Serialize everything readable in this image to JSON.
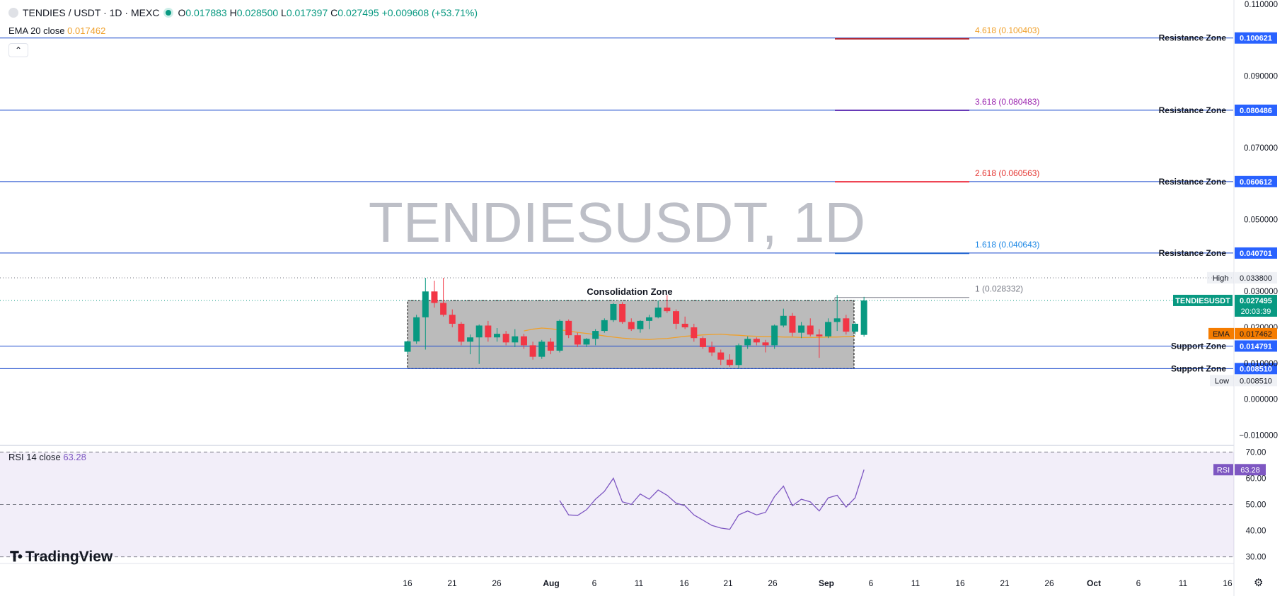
{
  "header": {
    "symbol": "TENDIES / USDT · 1D · MEXC",
    "ohlc": [
      {
        "k": "O",
        "v": "0.017883"
      },
      {
        "k": "H",
        "v": "0.028500"
      },
      {
        "k": "L",
        "v": "0.017397"
      },
      {
        "k": "C",
        "v": "0.027495"
      }
    ],
    "change": "+0.009608 (+53.71%)",
    "ema_label": "EMA 20 close",
    "ema_value": "0.017462"
  },
  "watermark": "TENDIESUSDT, 1D",
  "rsi_panel": {
    "label": "RSI 14 close",
    "value": "63.28"
  },
  "branding": {
    "logo_text": "TradingView"
  },
  "colors": {
    "up": "#089981",
    "down": "#f23645",
    "ema": "#f0a02a",
    "rsi": "#7e57c2",
    "zone_line": "#1848cc",
    "badge_blue": "#2962ff"
  },
  "chart_data": {
    "type": "candlestick",
    "x_ticks": [
      "16",
      "21",
      "26",
      "Aug",
      "6",
      "11",
      "16",
      "21",
      "26",
      "Sep",
      "6",
      "11",
      "16",
      "21",
      "26",
      "Oct",
      "6",
      "11",
      "16"
    ],
    "y_ticks": [
      "0.110000",
      "0.090000",
      "0.070000",
      "0.050000",
      "0.030000",
      "0.020000",
      "0.010000",
      "0.000000",
      "−0.010000"
    ],
    "ylim": [
      -0.0125,
      0.1112
    ],
    "candles": [
      [
        0.0132,
        0.0162,
        0.0125,
        0.0161
      ],
      [
        0.0161,
        0.0235,
        0.0154,
        0.0228
      ],
      [
        0.0228,
        0.0338,
        0.0138,
        0.03
      ],
      [
        0.03,
        0.033,
        0.0255,
        0.0268
      ],
      [
        0.0268,
        0.0338,
        0.023,
        0.0235
      ],
      [
        0.0235,
        0.025,
        0.02,
        0.021
      ],
      [
        0.021,
        0.0215,
        0.015,
        0.016
      ],
      [
        0.016,
        0.018,
        0.0125,
        0.0172
      ],
      [
        0.0172,
        0.0208,
        0.0098,
        0.0205
      ],
      [
        0.0205,
        0.0218,
        0.016,
        0.0172
      ],
      [
        0.0172,
        0.0198,
        0.016,
        0.0182
      ],
      [
        0.0182,
        0.019,
        0.015,
        0.0158
      ],
      [
        0.0158,
        0.0195,
        0.0145,
        0.0175
      ],
      [
        0.0175,
        0.0182,
        0.014,
        0.015
      ],
      [
        0.015,
        0.016,
        0.011,
        0.0118
      ],
      [
        0.0118,
        0.0165,
        0.0112,
        0.016
      ],
      [
        0.016,
        0.017,
        0.0125,
        0.0135
      ],
      [
        0.0135,
        0.0222,
        0.013,
        0.0218
      ],
      [
        0.0218,
        0.0222,
        0.017,
        0.0178
      ],
      [
        0.0178,
        0.0185,
        0.0145,
        0.0152
      ],
      [
        0.0152,
        0.017,
        0.0145,
        0.0168
      ],
      [
        0.0168,
        0.0195,
        0.015,
        0.019
      ],
      [
        0.019,
        0.0225,
        0.0185,
        0.022
      ],
      [
        0.022,
        0.0268,
        0.0215,
        0.0265
      ],
      [
        0.0265,
        0.027,
        0.021,
        0.0215
      ],
      [
        0.0215,
        0.0225,
        0.019,
        0.0195
      ],
      [
        0.0195,
        0.022,
        0.0185,
        0.0218
      ],
      [
        0.0218,
        0.0235,
        0.0195,
        0.0228
      ],
      [
        0.0228,
        0.0275,
        0.0225,
        0.0255
      ],
      [
        0.0255,
        0.029,
        0.024,
        0.0245
      ],
      [
        0.0245,
        0.025,
        0.0195,
        0.021
      ],
      [
        0.021,
        0.023,
        0.0195,
        0.02
      ],
      [
        0.02,
        0.021,
        0.016,
        0.017
      ],
      [
        0.017,
        0.0175,
        0.014,
        0.0145
      ],
      [
        0.0145,
        0.016,
        0.012,
        0.013
      ],
      [
        0.013,
        0.0138,
        0.0095,
        0.011
      ],
      [
        0.011,
        0.0125,
        0.009,
        0.0095
      ],
      [
        0.0095,
        0.0155,
        0.0085,
        0.015
      ],
      [
        0.015,
        0.0175,
        0.014,
        0.0168
      ],
      [
        0.0168,
        0.0172,
        0.015,
        0.0158
      ],
      [
        0.0158,
        0.0165,
        0.013,
        0.015
      ],
      [
        0.015,
        0.0208,
        0.014,
        0.0205
      ],
      [
        0.0205,
        0.0252,
        0.02,
        0.0232
      ],
      [
        0.0232,
        0.024,
        0.0175,
        0.0185
      ],
      [
        0.0185,
        0.0215,
        0.017,
        0.0205
      ],
      [
        0.0205,
        0.0225,
        0.0175,
        0.018
      ],
      [
        0.018,
        0.0195,
        0.0115,
        0.0175
      ],
      [
        0.0175,
        0.0225,
        0.017,
        0.0215
      ],
      [
        0.0215,
        0.029,
        0.019,
        0.0225
      ],
      [
        0.0225,
        0.0235,
        0.018,
        0.0188
      ],
      [
        0.0188,
        0.0215,
        0.018,
        0.021
      ],
      [
        0.0179,
        0.0285,
        0.0174,
        0.0275
      ]
    ],
    "ema": [
      0.019,
      0.0195,
      0.0198,
      0.0196,
      0.0193,
      0.019,
      0.0186,
      0.0183,
      0.018,
      0.0176,
      0.0173,
      0.017,
      0.0168,
      0.0167,
      0.0166,
      0.0168,
      0.0169,
      0.0172,
      0.0175,
      0.0177,
      0.0179,
      0.018,
      0.0181,
      0.0179,
      0.0178,
      0.0176,
      0.0175,
      0.0174,
      0.0174,
      0.0173,
      0.0173,
      0.0172,
      0.0172,
      0.0172,
      0.0173,
      0.0173,
      0.0174,
      0.0175
    ],
    "rsi": [
      51.5,
      46,
      45.8,
      48,
      52,
      55,
      60,
      51,
      50,
      54,
      52,
      55.5,
      53.5,
      50.5,
      49.5,
      46,
      44,
      42,
      41,
      40.5,
      46,
      47.5,
      46,
      47,
      53,
      57,
      49.5,
      52,
      51,
      47.5,
      52.5,
      53.5,
      49,
      52.5,
      63.28
    ],
    "rsi_ticks": [
      "70.00",
      "60.00",
      "50.00",
      "40.00",
      "30.00"
    ],
    "rsi_ylim": [
      28,
      72
    ],
    "zones": [
      {
        "label": "Resistance Zone",
        "value": 0.100621,
        "value_text": "0.100621"
      },
      {
        "label": "Resistance Zone",
        "value": 0.080486,
        "value_text": "0.080486"
      },
      {
        "label": "Resistance Zone",
        "value": 0.060612,
        "value_text": "0.060612"
      },
      {
        "label": "Resistance Zone",
        "value": 0.040701,
        "value_text": "0.040701"
      },
      {
        "label": "Support Zone",
        "value": 0.014791,
        "value_text": "0.014791"
      },
      {
        "label": "Support Zone",
        "value": 0.00851,
        "value_text": "0.008510"
      }
    ],
    "fib_levels": [
      {
        "label": "4.618 (0.100403)",
        "value": 0.100403,
        "color": "#f0a02a",
        "line": "#b22833"
      },
      {
        "label": "3.618 (0.080483)",
        "value": 0.080483,
        "color": "#9c27b0",
        "line": "#673ab7"
      },
      {
        "label": "2.618 (0.060563)",
        "value": 0.060563,
        "color": "#e53935",
        "line": "#f23645"
      },
      {
        "label": "1.618 (0.040643)",
        "value": 0.040643,
        "color": "#1e88e5",
        "line": "#1e62d0"
      },
      {
        "label": "1 (0.028332)",
        "value": 0.028332,
        "color": "#787b86",
        "line": "#787b86"
      }
    ],
    "annotation": "Consolidation Zone",
    "consolidation_range": [
      0.00851,
      0.027495
    ],
    "high": {
      "label": "High",
      "value": 0.0338,
      "value_text": "0.033800"
    },
    "low": {
      "label": "Low",
      "value": 0.00851,
      "value_text": "0.008510"
    },
    "last_price": {
      "label": "TENDIESUSDT",
      "value": 0.027495,
      "value_text": "0.027495",
      "countdown": "20:03:39"
    },
    "ema_badge": {
      "label": "EMA",
      "value": 0.017462,
      "value_text": "0.017462"
    },
    "rsi_badge": {
      "label": "RSI",
      "value": 63.28,
      "value_text": "63.28"
    }
  }
}
